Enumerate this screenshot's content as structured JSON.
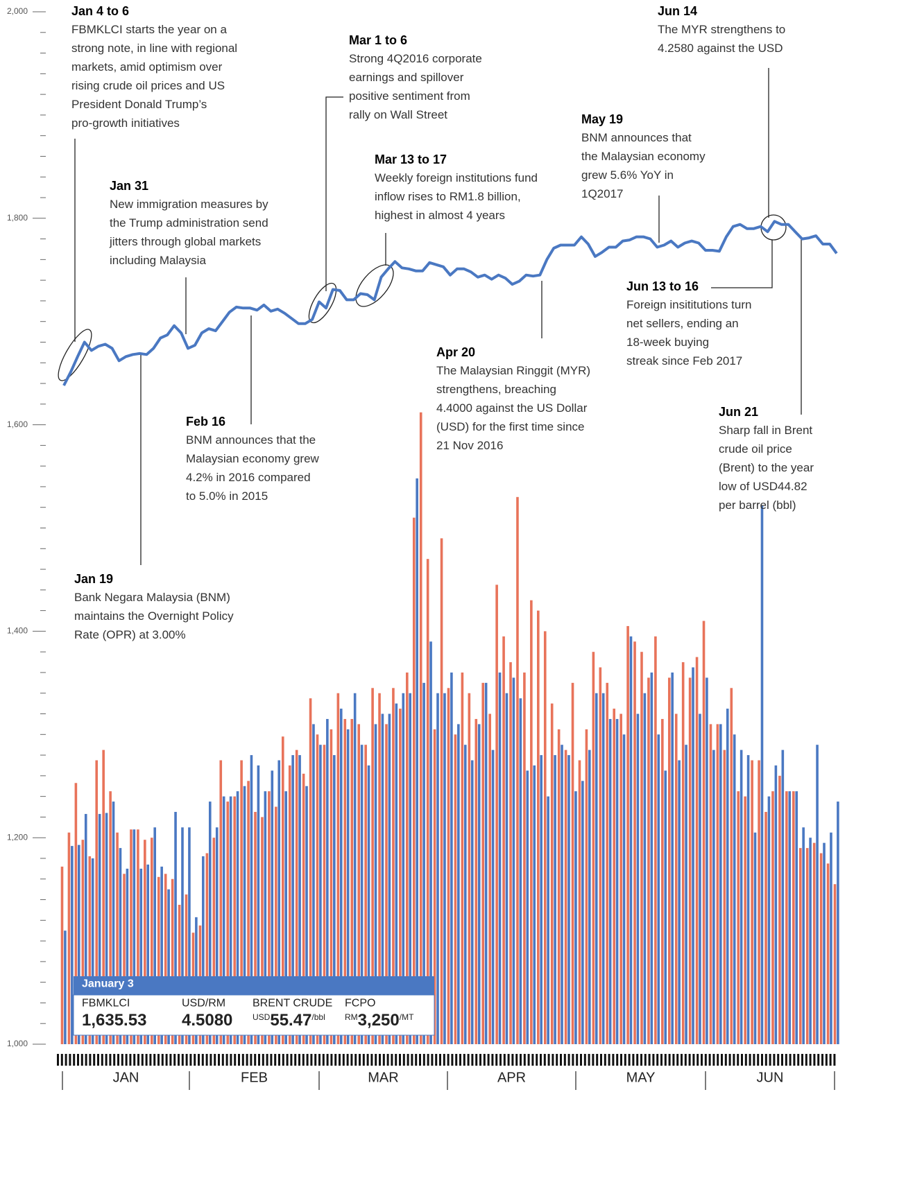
{
  "chart_data": {
    "type": "line-bar",
    "ylim": [
      1000,
      2000
    ],
    "yticks": [
      {
        "value": 1000,
        "label": "1,000"
      },
      {
        "value": 1200,
        "label": "1,200"
      },
      {
        "value": 1400,
        "label": "1,400"
      },
      {
        "value": 1600,
        "label": "1,600"
      },
      {
        "value": 1800,
        "label": "1,800"
      },
      {
        "value": 2000,
        "label": "2,000"
      }
    ],
    "months": [
      "JAN",
      "FEB",
      "MAR",
      "APR",
      "MAY",
      "JUN"
    ],
    "line": {
      "color": "#4a78c2",
      "values": [
        1638,
        1651,
        1666,
        1680,
        1672,
        1676,
        1678,
        1674,
        1662,
        1666,
        1668,
        1669,
        1668,
        1674,
        1684,
        1687,
        1696,
        1689,
        1674,
        1677,
        1689,
        1693,
        1691,
        1700,
        1709,
        1714,
        1713,
        1713,
        1711,
        1716,
        1710,
        1712,
        1708,
        1703,
        1698,
        1698,
        1702,
        1719,
        1713,
        1731,
        1730,
        1721,
        1721,
        1727,
        1726,
        1721,
        1743,
        1751,
        1758,
        1752,
        1751,
        1749,
        1749,
        1757,
        1755,
        1753,
        1745,
        1751,
        1751,
        1748,
        1743,
        1745,
        1741,
        1745,
        1742,
        1736,
        1739,
        1745,
        1744,
        1745,
        1760,
        1771,
        1774,
        1774,
        1774,
        1782,
        1775,
        1763,
        1767,
        1772,
        1772,
        1778,
        1779,
        1782,
        1782,
        1780,
        1772,
        1774,
        1778,
        1772,
        1776,
        1778,
        1776,
        1769,
        1769,
        1768,
        1782,
        1792,
        1794,
        1790,
        1790,
        1792,
        1787,
        1797,
        1794,
        1794,
        1787,
        1780,
        1781,
        1783,
        1775,
        1775,
        1766
      ]
    },
    "series": [
      {
        "color": "#e8735a",
        "values": [
          1172,
          1205,
          1253,
          1198,
          1182,
          1275,
          1285,
          1245,
          1205,
          1165,
          1208,
          1208,
          1198,
          1200,
          1162,
          1165,
          1160,
          1135,
          1145,
          1108,
          1115,
          1185,
          1200,
          1275,
          1235,
          1240,
          1275,
          1255,
          1225,
          1220,
          1245,
          1230,
          1298,
          1270,
          1285,
          1262,
          1335,
          1300,
          1290,
          1305,
          1340,
          1315,
          1315,
          1310,
          1290,
          1345,
          1340,
          1310,
          1345,
          1325,
          1360,
          1510,
          1612,
          1470,
          1305,
          1490,
          1345,
          1300,
          1360,
          1340,
          1315,
          1350,
          1320,
          1445,
          1395,
          1370,
          1530,
          1360,
          1430,
          1420,
          1400,
          1330,
          1305,
          1285,
          1350,
          1275,
          1305,
          1380,
          1365,
          1350,
          1325,
          1320,
          1405,
          1390,
          1380,
          1355,
          1395,
          1315,
          1355,
          1320,
          1370,
          1355,
          1375,
          1410,
          1310,
          1310,
          1285,
          1345,
          1245,
          1240,
          1275,
          1275,
          1225,
          1245,
          1260,
          1245,
          1245,
          1190,
          1190,
          1195,
          1185,
          1175,
          1155
        ]
      },
      {
        "color": "#4a78c2",
        "values": [
          1110,
          1192,
          1193,
          1223,
          1180,
          1223,
          1224,
          1235,
          1190,
          1170,
          1208,
          1170,
          1174,
          1210,
          1172,
          1150,
          1225,
          1210,
          1210,
          1123,
          1182,
          1235,
          1210,
          1240,
          1240,
          1245,
          1250,
          1280,
          1270,
          1245,
          1265,
          1275,
          1245,
          1280,
          1280,
          1250,
          1310,
          1290,
          1315,
          1280,
          1325,
          1305,
          1340,
          1290,
          1270,
          1310,
          1320,
          1320,
          1330,
          1340,
          1340,
          1548,
          1350,
          1390,
          1340,
          1340,
          1360,
          1310,
          1290,
          1275,
          1310,
          1350,
          1285,
          1360,
          1340,
          1355,
          1335,
          1265,
          1270,
          1280,
          1240,
          1280,
          1290,
          1280,
          1245,
          1255,
          1285,
          1340,
          1340,
          1315,
          1315,
          1300,
          1395,
          1320,
          1340,
          1360,
          1300,
          1265,
          1360,
          1275,
          1290,
          1365,
          1320,
          1355,
          1285,
          1310,
          1325,
          1300,
          1285,
          1280,
          1205,
          1522,
          1240,
          1270,
          1285,
          1245,
          1245,
          1210,
          1200,
          1290,
          1195,
          1205,
          1235
        ]
      }
    ],
    "annotations": [
      {
        "title": "Jan 4 to 6",
        "lines": [
          "FBMKLCI starts the year on a",
          "strong note, in line with regional",
          "markets, amid optimism over",
          "rising crude oil prices and US",
          "President Donald Trump’s",
          "pro-growth initiatives"
        ]
      },
      {
        "title": "Jan 31",
        "lines": [
          "New immigration measures by",
          "the Trump administration send",
          "jitters through global markets",
          "including Malaysia"
        ]
      },
      {
        "title": "Jan 19",
        "lines": [
          "Bank Negara Malaysia (BNM)",
          "maintains the Overnight Policy",
          "Rate (OPR) at 3.00%"
        ]
      },
      {
        "title": "Feb 16",
        "lines": [
          "BNM announces that the",
          "Malaysian economy grew",
          "4.2% in 2016 compared",
          "to 5.0% in 2015"
        ]
      },
      {
        "title": "Mar 1 to 6",
        "lines": [
          "Strong 4Q2016 corporate",
          "earnings and spillover",
          "positive sentiment from",
          "rally on Wall Street"
        ]
      },
      {
        "title": "Mar 13 to 17",
        "lines": [
          "Weekly foreign institutions fund",
          "inflow rises to RM1.8 billion,",
          "highest in almost 4 years"
        ]
      },
      {
        "title": "Apr 20",
        "lines": [
          "The Malaysian Ringgit (MYR)",
          "strengthens, breaching",
          "4.4000 against the US Dollar",
          "(USD) for the first time since",
          "21 Nov 2016"
        ]
      },
      {
        "title": "May 19",
        "lines": [
          "BNM announces that",
          "the Malaysian economy",
          "grew 5.6% YoY in",
          "1Q2017"
        ]
      },
      {
        "title": "Jun 14",
        "lines": [
          "The MYR strengthens to",
          "4.2580 against the USD"
        ]
      },
      {
        "title": "Jun 13 to 16",
        "lines": [
          "Foreign insititutions turn",
          "net sellers, ending an",
          "18-week buying",
          "streak since Feb 2017"
        ]
      },
      {
        "title": "Jun 21",
        "lines": [
          "Sharp fall in Brent",
          "crude oil price",
          "(Brent) to the year",
          "low of USD44.82",
          "per barrel (bbl)"
        ]
      }
    ],
    "infobox": {
      "title": "January 3",
      "items": [
        {
          "label": "FBMKLCI",
          "value": "1,635.53"
        },
        {
          "label": "USD/RM",
          "value": "4.5080"
        },
        {
          "label": "BRENT CRUDE",
          "prefix": "USD",
          "value": "55.47",
          "suffix": "/bbl"
        },
        {
          "label": "FCPO",
          "prefix": "RM",
          "value": "3,250",
          "suffix": "/MT"
        }
      ]
    }
  }
}
